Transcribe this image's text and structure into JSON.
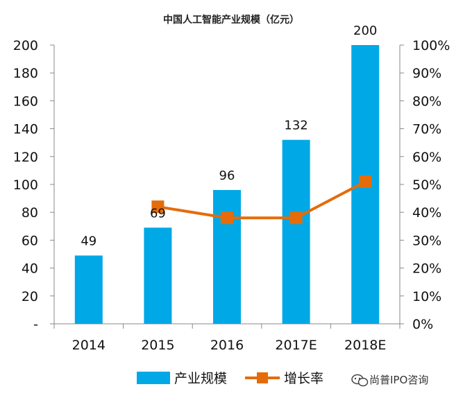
{
  "chart_data": {
    "type": "bar",
    "title": "中国人工智能产业规模（亿元）",
    "categories": [
      "2014",
      "2015",
      "2016",
      "2017E",
      "2018E"
    ],
    "series": [
      {
        "name": "产业规模",
        "axis": "left",
        "kind": "bar",
        "values": [
          49,
          69,
          96,
          132,
          200
        ],
        "color": "#00a8e6"
      },
      {
        "name": "增长率",
        "axis": "right",
        "kind": "line",
        "values": [
          null,
          0.42,
          0.38,
          0.38,
          0.51
        ],
        "color": "#e46c0a"
      }
    ],
    "data_labels": [
      "49",
      "69",
      "96",
      "132",
      "200"
    ],
    "ylim_left": [
      0,
      200
    ],
    "yticks_left": [
      "-",
      "20",
      "40",
      "60",
      "80",
      "100",
      "120",
      "140",
      "160",
      "180",
      "200"
    ],
    "ylim_right": [
      0,
      1
    ],
    "yticks_right": [
      "0%",
      "10%",
      "20%",
      "30%",
      "40%",
      "50%",
      "60%",
      "70%",
      "80%",
      "90%",
      "100%"
    ],
    "grid": false,
    "legend_position": "bottom"
  },
  "watermark": {
    "text": "尚普IPO咨询",
    "icon": "wechat-icon"
  }
}
